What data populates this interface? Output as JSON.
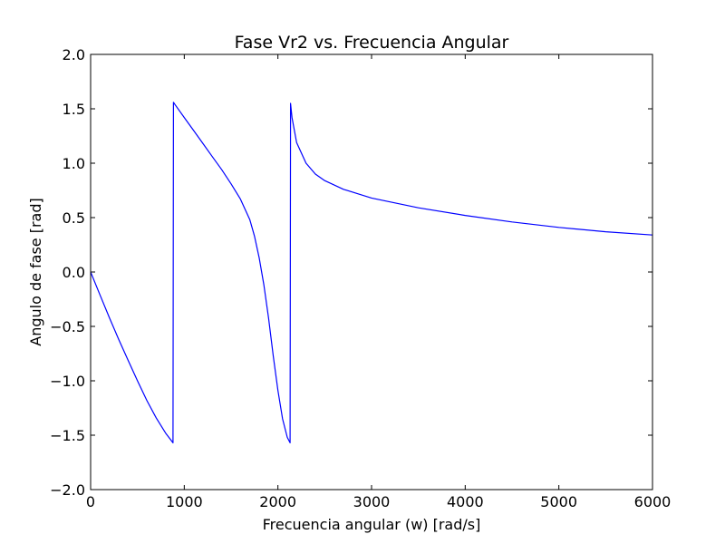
{
  "chart_data": {
    "type": "line",
    "title": "Fase Vr2 vs. Frecuencia Angular",
    "xlabel": "Frecuencia angular (w) [rad/s]",
    "ylabel": "Angulo de fase [rad]",
    "xlim": [
      0,
      6000
    ],
    "ylim": [
      -2.0,
      2.0
    ],
    "xticks": [
      0,
      1000,
      2000,
      3000,
      4000,
      5000,
      6000
    ],
    "xtick_labels": [
      "0",
      "1000",
      "2000",
      "3000",
      "4000",
      "5000",
      "6000"
    ],
    "yticks": [
      2.0,
      1.5,
      1.0,
      0.5,
      0.0,
      -0.5,
      -1.0,
      -1.5,
      -2.0
    ],
    "ytick_labels": [
      "2.0",
      "1.5",
      "1.0",
      "0.5",
      "0.0",
      "−0.5",
      "−1.0",
      "−1.5",
      "−2.0"
    ],
    "grid": false,
    "series": [
      {
        "color": "#0000ff",
        "x": [
          0,
          100,
          200,
          300,
          400,
          500,
          600,
          700,
          800,
          880,
          885,
          900,
          1000,
          1100,
          1200,
          1300,
          1400,
          1500,
          1600,
          1700,
          1750,
          1800,
          1850,
          1900,
          1950,
          2000,
          2050,
          2100,
          2130,
          2135,
          2150,
          2200,
          2300,
          2400,
          2500,
          2700,
          3000,
          3500,
          4000,
          4500,
          5000,
          5500,
          6000
        ],
        "y": [
          0,
          -0.21,
          -0.42,
          -0.62,
          -0.81,
          -1.0,
          -1.18,
          -1.34,
          -1.48,
          -1.57,
          1.56,
          1.54,
          1.42,
          1.3,
          1.18,
          1.06,
          0.94,
          0.81,
          0.67,
          0.48,
          0.33,
          0.13,
          -0.12,
          -0.42,
          -0.77,
          -1.09,
          -1.35,
          -1.52,
          -1.57,
          1.55,
          1.42,
          1.19,
          1.0,
          0.9,
          0.84,
          0.76,
          0.68,
          0.59,
          0.52,
          0.46,
          0.41,
          0.37,
          0.34
        ]
      }
    ]
  }
}
